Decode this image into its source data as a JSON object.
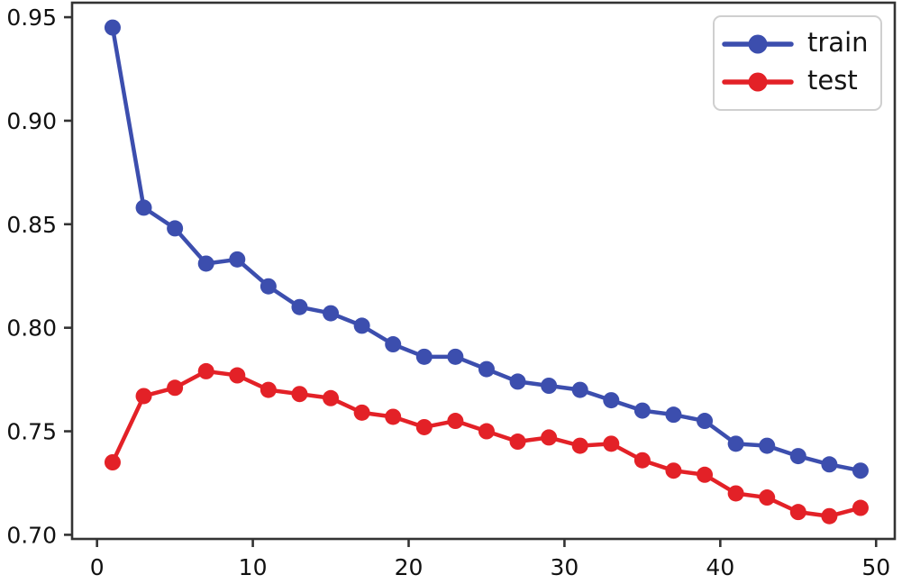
{
  "figure": {
    "background": "#ffffff"
  },
  "chart_data": {
    "type": "line",
    "title": "",
    "xlabel": "",
    "ylabel": "",
    "x": [
      1,
      3,
      5,
      7,
      9,
      11,
      13,
      15,
      17,
      19,
      21,
      23,
      25,
      27,
      29,
      31,
      33,
      35,
      37,
      39,
      41,
      43,
      45,
      47,
      49
    ],
    "series": [
      {
        "name": "train",
        "color": "#3c4eae",
        "marker": "o",
        "values": [
          0.945,
          0.858,
          0.848,
          0.831,
          0.833,
          0.82,
          0.81,
          0.807,
          0.801,
          0.792,
          0.786,
          0.786,
          0.78,
          0.774,
          0.772,
          0.77,
          0.765,
          0.76,
          0.758,
          0.755,
          0.744,
          0.743,
          0.738,
          0.734,
          0.731
        ]
      },
      {
        "name": "test",
        "color": "#e32127",
        "marker": "o",
        "values": [
          0.735,
          0.767,
          0.771,
          0.779,
          0.777,
          0.77,
          0.768,
          0.766,
          0.759,
          0.757,
          0.752,
          0.755,
          0.75,
          0.745,
          0.747,
          0.743,
          0.744,
          0.736,
          0.731,
          0.729,
          0.72,
          0.718,
          0.711,
          0.709,
          0.713
        ]
      }
    ],
    "xlim": [
      -1.6,
      51.2
    ],
    "ylim": [
      0.698,
      0.957
    ],
    "x_ticks": [
      0,
      10,
      20,
      30,
      40,
      50
    ],
    "x_tick_labels": [
      "0",
      "10",
      "20",
      "30",
      "40",
      "50"
    ],
    "y_ticks": [
      0.7,
      0.75,
      0.8,
      0.85,
      0.9,
      0.95
    ],
    "y_tick_labels": [
      "0.70",
      "0.75",
      "0.80",
      "0.85",
      "0.90",
      "0.95"
    ],
    "grid": false,
    "legend": {
      "position": "upper right",
      "entries": [
        "train",
        "test"
      ]
    },
    "axis_color": "#333333",
    "tick_label_color": "#111111"
  }
}
